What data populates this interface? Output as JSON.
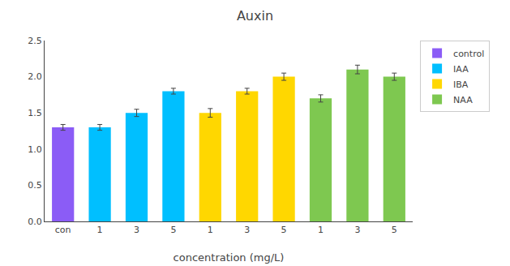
{
  "chart_data": {
    "type": "bar",
    "title": "Auxin",
    "xlabel": "concentration (mg/L)",
    "categories": [
      "con",
      "1",
      "3",
      "5",
      "1",
      "3",
      "5",
      "1",
      "3",
      "5"
    ],
    "series": [
      {
        "name": "control",
        "color": "#8B5CF6",
        "values": [
          1.3,
          null,
          null,
          null,
          null,
          null,
          null,
          null,
          null,
          null
        ],
        "errors": [
          0.04,
          null,
          null,
          null,
          null,
          null,
          null,
          null,
          null,
          null
        ]
      },
      {
        "name": "IAA",
        "color": "#00BFFF",
        "values": [
          null,
          1.3,
          1.5,
          1.8,
          null,
          null,
          null,
          null,
          null,
          null
        ],
        "errors": [
          null,
          0.04,
          0.05,
          0.04,
          null,
          null,
          null,
          null,
          null,
          null
        ]
      },
      {
        "name": "IBA",
        "color": "#FFD700",
        "values": [
          null,
          null,
          null,
          null,
          1.5,
          1.8,
          2.0,
          null,
          null,
          null
        ],
        "errors": [
          null,
          null,
          null,
          null,
          0.06,
          0.04,
          0.05,
          null,
          null,
          null
        ]
      },
      {
        "name": "NAA",
        "color": "#7EC850",
        "values": [
          null,
          null,
          null,
          null,
          null,
          null,
          null,
          1.7,
          2.1,
          2.0
        ],
        "errors": [
          null,
          null,
          null,
          null,
          null,
          null,
          null,
          0.05,
          0.06,
          0.05
        ]
      }
    ],
    "ylim": [
      0.0,
      2.5
    ],
    "yticks": [
      {
        "value": 0.0,
        "label": "0.0"
      },
      {
        "value": 0.5,
        "label": "0.5"
      },
      {
        "value": 1.0,
        "label": "1.0"
      },
      {
        "value": 1.5,
        "label": "1.5"
      },
      {
        "value": 2.0,
        "label": "2.0"
      },
      {
        "value": 2.5,
        "label": "2.5"
      }
    ],
    "grid": false,
    "legend": "upper right"
  }
}
